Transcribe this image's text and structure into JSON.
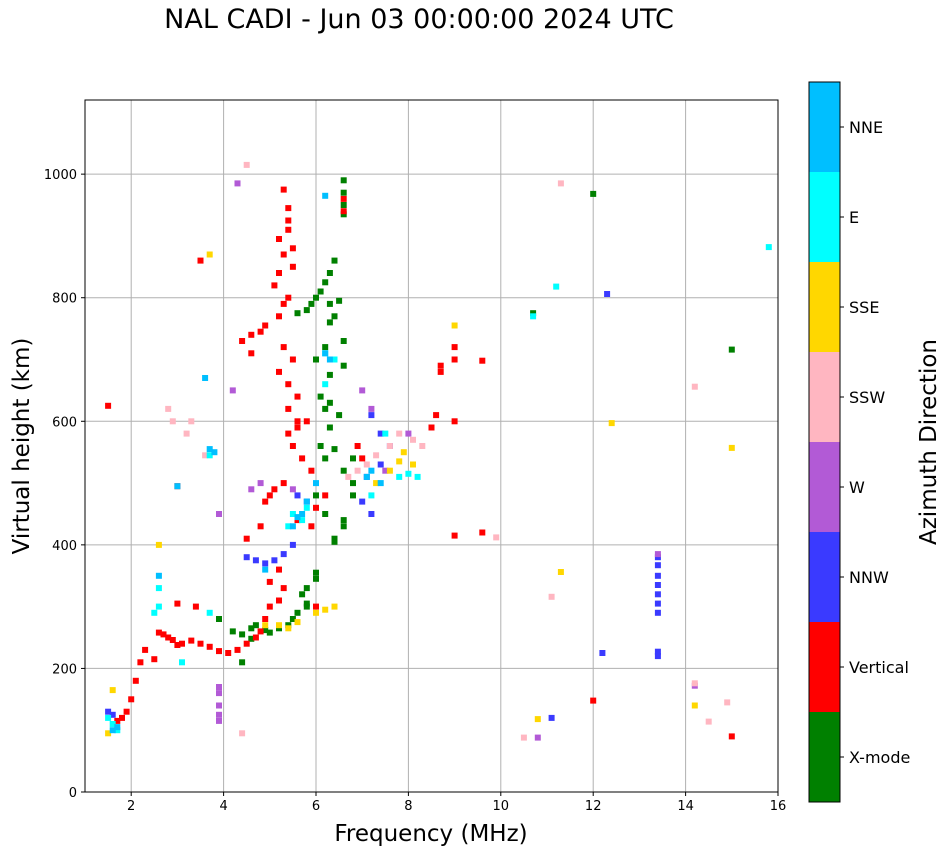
{
  "chart_data": {
    "type": "scatter",
    "title": "NAL CADI - Jun 03 00:00:00 2024 UTC",
    "xlabel": "Frequency (MHz)",
    "ylabel": "Virtual height (km)",
    "xlim": [
      1,
      16
    ],
    "ylim": [
      0,
      1120
    ],
    "xticks": [
      2,
      4,
      6,
      8,
      10,
      12,
      14,
      16
    ],
    "yticks": [
      0,
      200,
      400,
      600,
      800,
      1000
    ],
    "grid": true,
    "colorbar": {
      "title": "Azimuth Direction",
      "categories": [
        {
          "label": "X-mode",
          "color": "#008000"
        },
        {
          "label": "Vertical",
          "color": "#ff0000"
        },
        {
          "label": "NNW",
          "color": "#3a3aff"
        },
        {
          "label": "W",
          "color": "#b25ad6"
        },
        {
          "label": "SSW",
          "color": "#ffb6c1"
        },
        {
          "label": "SSE",
          "color": "#ffd700"
        },
        {
          "label": "E",
          "color": "#00ffff"
        },
        {
          "label": "NNE",
          "color": "#00bfff"
        }
      ]
    },
    "series": [
      {
        "name": "X-mode",
        "points": [
          [
            6.6,
            990
          ],
          [
            6.6,
            970
          ],
          [
            6.6,
            950
          ],
          [
            6.6,
            935
          ],
          [
            6.4,
            860
          ],
          [
            6.3,
            840
          ],
          [
            6.2,
            825
          ],
          [
            6.1,
            810
          ],
          [
            6.0,
            800
          ],
          [
            6.3,
            790
          ],
          [
            5.9,
            790
          ],
          [
            5.8,
            780
          ],
          [
            5.6,
            775
          ],
          [
            6.5,
            795
          ],
          [
            6.4,
            770
          ],
          [
            6.3,
            760
          ],
          [
            6.6,
            730
          ],
          [
            6.2,
            720
          ],
          [
            6.0,
            700
          ],
          [
            6.6,
            690
          ],
          [
            6.3,
            675
          ],
          [
            6.1,
            640
          ],
          [
            6.3,
            630
          ],
          [
            6.2,
            620
          ],
          [
            6.5,
            610
          ],
          [
            6.3,
            590
          ],
          [
            6.1,
            560
          ],
          [
            6.4,
            555
          ],
          [
            6.2,
            540
          ],
          [
            6.8,
            540
          ],
          [
            6.6,
            520
          ],
          [
            6.8,
            500
          ],
          [
            6.8,
            480
          ],
          [
            6.6,
            440
          ],
          [
            6.6,
            430
          ],
          [
            6.4,
            410
          ],
          [
            6.4,
            405
          ],
          [
            6.2,
            450
          ],
          [
            6.0,
            480
          ],
          [
            6.0,
            355
          ],
          [
            6.0,
            345
          ],
          [
            5.8,
            330
          ],
          [
            5.8,
            300
          ],
          [
            5.7,
            320
          ],
          [
            5.6,
            290
          ],
          [
            5.5,
            280
          ],
          [
            5.4,
            270
          ],
          [
            5.2,
            265
          ],
          [
            5.0,
            258
          ],
          [
            4.9,
            262
          ],
          [
            4.7,
            270
          ],
          [
            4.6,
            265
          ],
          [
            4.4,
            255
          ],
          [
            4.6,
            248
          ],
          [
            4.2,
            260
          ],
          [
            3.9,
            280
          ],
          [
            4.4,
            210
          ],
          [
            5.8,
            305
          ],
          [
            12.0,
            968
          ],
          [
            10.7,
            775
          ],
          [
            15.0,
            716
          ]
        ]
      },
      {
        "name": "Vertical",
        "points": [
          [
            6.6,
            960
          ],
          [
            6.6,
            940
          ],
          [
            5.3,
            975
          ],
          [
            5.4,
            945
          ],
          [
            5.4,
            925
          ],
          [
            5.4,
            910
          ],
          [
            5.2,
            895
          ],
          [
            5.5,
            880
          ],
          [
            5.3,
            870
          ],
          [
            5.5,
            850
          ],
          [
            5.2,
            840
          ],
          [
            5.1,
            820
          ],
          [
            5.4,
            800
          ],
          [
            5.3,
            790
          ],
          [
            5.2,
            770
          ],
          [
            4.9,
            755
          ],
          [
            4.8,
            745
          ],
          [
            4.6,
            740
          ],
          [
            4.4,
            730
          ],
          [
            4.6,
            710
          ],
          [
            5.3,
            720
          ],
          [
            5.5,
            700
          ],
          [
            5.2,
            680
          ],
          [
            5.4,
            660
          ],
          [
            5.6,
            640
          ],
          [
            5.4,
            620
          ],
          [
            5.6,
            600
          ],
          [
            5.4,
            580
          ],
          [
            5.5,
            560
          ],
          [
            5.7,
            540
          ],
          [
            5.9,
            520
          ],
          [
            5.3,
            500
          ],
          [
            5.1,
            490
          ],
          [
            5.0,
            480
          ],
          [
            4.9,
            470
          ],
          [
            5.6,
            440
          ],
          [
            4.8,
            430
          ],
          [
            5.9,
            430
          ],
          [
            6.0,
            460
          ],
          [
            6.2,
            480
          ],
          [
            7.0,
            540
          ],
          [
            6.9,
            560
          ],
          [
            8.6,
            610
          ],
          [
            8.5,
            590
          ],
          [
            9.0,
            600
          ],
          [
            8.7,
            690
          ],
          [
            8.7,
            680
          ],
          [
            9.0,
            720
          ],
          [
            9.0,
            700
          ],
          [
            9.6,
            698
          ],
          [
            9.0,
            415
          ],
          [
            9.6,
            420
          ],
          [
            5.2,
            360
          ],
          [
            5.0,
            340
          ],
          [
            5.3,
            330
          ],
          [
            5.2,
            310
          ],
          [
            5.0,
            300
          ],
          [
            4.9,
            280
          ],
          [
            4.8,
            260
          ],
          [
            4.7,
            250
          ],
          [
            4.5,
            240
          ],
          [
            4.3,
            230
          ],
          [
            4.1,
            225
          ],
          [
            3.9,
            228
          ],
          [
            3.7,
            235
          ],
          [
            3.5,
            240
          ],
          [
            3.3,
            245
          ],
          [
            3.1,
            240
          ],
          [
            3.0,
            238
          ],
          [
            2.9,
            246
          ],
          [
            2.8,
            250
          ],
          [
            2.7,
            255
          ],
          [
            2.6,
            258
          ],
          [
            2.5,
            215
          ],
          [
            2.3,
            230
          ],
          [
            2.2,
            210
          ],
          [
            2.1,
            180
          ],
          [
            2.0,
            150
          ],
          [
            1.9,
            130
          ],
          [
            1.8,
            120
          ],
          [
            1.7,
            115
          ],
          [
            3.0,
            495
          ],
          [
            3.5,
            860
          ],
          [
            3.0,
            305
          ],
          [
            3.4,
            300
          ],
          [
            4.5,
            410
          ],
          [
            6.0,
            300
          ],
          [
            1.5,
            625
          ],
          [
            12.0,
            148
          ],
          [
            15.0,
            90
          ],
          [
            5.6,
            590
          ],
          [
            5.8,
            600
          ]
        ]
      },
      {
        "name": "NNW",
        "points": [
          [
            13.4,
            367
          ],
          [
            13.4,
            350
          ],
          [
            13.4,
            335
          ],
          [
            13.4,
            320
          ],
          [
            13.4,
            305
          ],
          [
            13.4,
            290
          ],
          [
            13.4,
            380
          ],
          [
            13.4,
            227
          ],
          [
            13.4,
            220
          ],
          [
            12.3,
            806
          ],
          [
            7.2,
            610
          ],
          [
            7.4,
            580
          ],
          [
            7.6,
            560
          ],
          [
            7.4,
            530
          ],
          [
            7.1,
            510
          ],
          [
            7.0,
            470
          ],
          [
            7.2,
            450
          ],
          [
            5.5,
            400
          ],
          [
            5.3,
            385
          ],
          [
            5.1,
            375
          ],
          [
            4.9,
            370
          ],
          [
            4.7,
            375
          ],
          [
            4.5,
            380
          ],
          [
            1.5,
            130
          ],
          [
            1.6,
            125
          ],
          [
            12.2,
            225
          ],
          [
            11.1,
            120
          ],
          [
            5.8,
            470
          ],
          [
            5.6,
            480
          ]
        ]
      },
      {
        "name": "W",
        "points": [
          [
            4.3,
            985
          ],
          [
            4.2,
            650
          ],
          [
            3.9,
            450
          ],
          [
            3.9,
            170
          ],
          [
            3.9,
            160
          ],
          [
            3.9,
            140
          ],
          [
            3.9,
            125
          ],
          [
            3.9,
            115
          ],
          [
            4.6,
            490
          ],
          [
            4.8,
            500
          ],
          [
            7.0,
            650
          ],
          [
            7.2,
            620
          ],
          [
            8.0,
            580
          ],
          [
            7.5,
            520
          ],
          [
            14.2,
            172
          ],
          [
            10.8,
            88
          ],
          [
            13.4,
            385
          ],
          [
            5.5,
            490
          ]
        ]
      },
      {
        "name": "SSW",
        "points": [
          [
            4.5,
            1015
          ],
          [
            7.8,
            580
          ],
          [
            7.6,
            560
          ],
          [
            7.3,
            545
          ],
          [
            7.1,
            530
          ],
          [
            6.9,
            520
          ],
          [
            8.1,
            570
          ],
          [
            8.3,
            560
          ],
          [
            6.7,
            510
          ],
          [
            14.2,
            656
          ],
          [
            14.2,
            176
          ],
          [
            14.5,
            114
          ],
          [
            14.9,
            145
          ],
          [
            10.5,
            88
          ],
          [
            11.1,
            316
          ],
          [
            11.3,
            985
          ],
          [
            4.4,
            95
          ],
          [
            3.3,
            600
          ],
          [
            3.2,
            580
          ],
          [
            2.8,
            620
          ],
          [
            2.9,
            600
          ],
          [
            9.9,
            412
          ],
          [
            3.6,
            545
          ]
        ]
      },
      {
        "name": "SSE",
        "points": [
          [
            3.7,
            870
          ],
          [
            6.4,
            300
          ],
          [
            6.2,
            295
          ],
          [
            6.0,
            290
          ],
          [
            7.8,
            535
          ],
          [
            7.6,
            520
          ],
          [
            7.9,
            550
          ],
          [
            8.1,
            530
          ],
          [
            7.3,
            500
          ],
          [
            9.0,
            755
          ],
          [
            12.4,
            597
          ],
          [
            11.3,
            356
          ],
          [
            10.8,
            118
          ],
          [
            14.2,
            140
          ],
          [
            15.0,
            557
          ],
          [
            2.6,
            400
          ],
          [
            1.5,
            95
          ],
          [
            1.6,
            165
          ],
          [
            5.2,
            270
          ],
          [
            5.4,
            265
          ],
          [
            5.6,
            275
          ],
          [
            4.9,
            270
          ]
        ]
      },
      {
        "name": "E",
        "points": [
          [
            11.2,
            818
          ],
          [
            10.7,
            770
          ],
          [
            15.8,
            882
          ],
          [
            6.2,
            710
          ],
          [
            6.4,
            700
          ],
          [
            6.2,
            660
          ],
          [
            5.7,
            440
          ],
          [
            5.5,
            450
          ],
          [
            5.4,
            430
          ],
          [
            5.8,
            460
          ],
          [
            7.5,
            580
          ],
          [
            7.8,
            510
          ],
          [
            8.0,
            515
          ],
          [
            8.2,
            510
          ],
          [
            7.2,
            480
          ],
          [
            3.7,
            545
          ],
          [
            2.6,
            330
          ],
          [
            2.6,
            300
          ],
          [
            2.5,
            290
          ],
          [
            1.6,
            110
          ],
          [
            1.7,
            100
          ],
          [
            1.5,
            120
          ],
          [
            3.1,
            210
          ],
          [
            3.7,
            290
          ]
        ]
      },
      {
        "name": "NNE",
        "points": [
          [
            3.8,
            550
          ],
          [
            3.7,
            555
          ],
          [
            6.2,
            965
          ],
          [
            6.2,
            710
          ],
          [
            6.3,
            700
          ],
          [
            5.7,
            450
          ],
          [
            5.6,
            445
          ],
          [
            5.5,
            430
          ],
          [
            5.8,
            470
          ],
          [
            6.0,
            500
          ],
          [
            7.1,
            510
          ],
          [
            7.4,
            500
          ],
          [
            7.2,
            520
          ],
          [
            3.6,
            670
          ],
          [
            1.6,
            100
          ],
          [
            1.7,
            105
          ],
          [
            3.0,
            495
          ],
          [
            4.9,
            360
          ],
          [
            2.6,
            350
          ]
        ]
      }
    ]
  }
}
